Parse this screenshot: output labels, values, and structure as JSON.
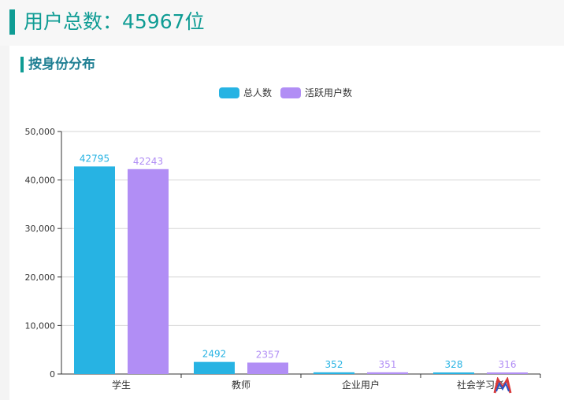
{
  "header": {
    "title": "用户总数：45967位"
  },
  "section": {
    "title": "按身份分布"
  },
  "colors": {
    "accent": "#0f9c94",
    "series1": "#27b3e3",
    "series2": "#b18ef5"
  },
  "chart_data": {
    "type": "bar",
    "categories": [
      "学生",
      "教师",
      "企业用户",
      "社会学习者"
    ],
    "series": [
      {
        "name": "总人数",
        "values": [
          42795,
          2492,
          352,
          328
        ]
      },
      {
        "name": "活跃用户数",
        "values": [
          42243,
          2357,
          351,
          316
        ]
      }
    ],
    "ylim": [
      0,
      50000
    ],
    "yticks": [
      "0",
      "10,000",
      "20,000",
      "30,000",
      "40,000",
      "50,000"
    ],
    "grid": true,
    "legend": "top-center"
  }
}
